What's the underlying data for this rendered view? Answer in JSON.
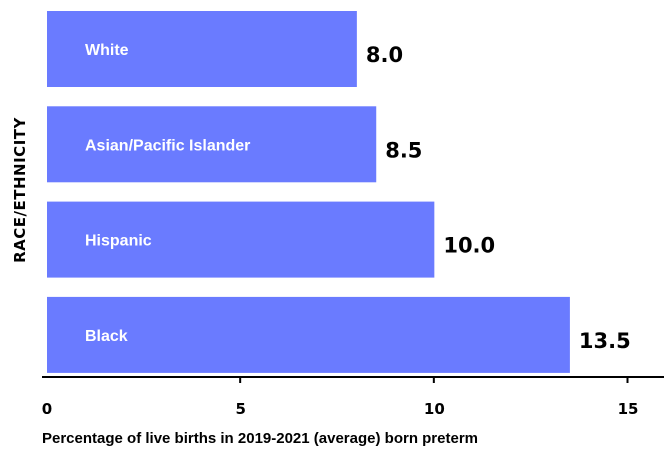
{
  "chart_data": {
    "type": "bar",
    "orientation": "horizontal",
    "categories": [
      "White",
      "Asian/Pacific Islander",
      "Hispanic",
      "Black"
    ],
    "values": [
      8.0,
      8.5,
      10.0,
      13.5
    ],
    "value_labels": [
      "8.0",
      "8.5",
      "10.0",
      "13.5"
    ],
    "xlabel": "Percentage of live births in 2019-2021 (average) born preterm",
    "ylabel": "RACE/ETHNICITY",
    "xlim": [
      0,
      15
    ],
    "xticks": [
      0,
      5,
      10,
      15
    ],
    "xtick_labels": [
      "0",
      "5",
      "10",
      "15"
    ],
    "grid": false,
    "bar_color": "#6a7bff"
  }
}
